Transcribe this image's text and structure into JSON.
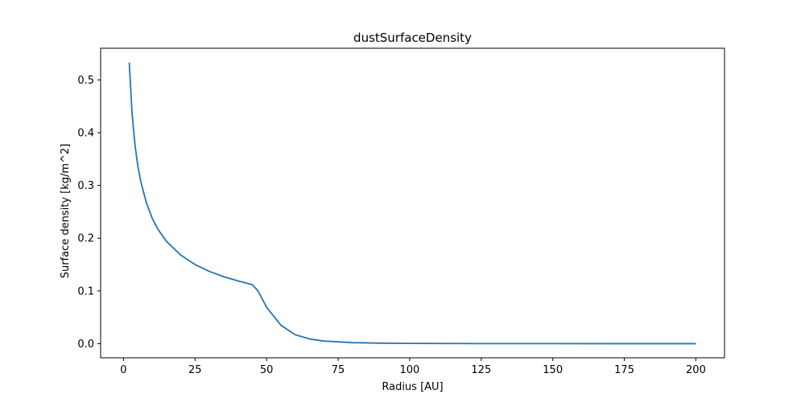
{
  "chart_data": {
    "type": "line",
    "title": "dustSurfaceDensity",
    "xlabel": "Radius [AU]",
    "ylabel": "Surface density [kg/m^2]",
    "xlim": [
      -8,
      210
    ],
    "ylim": [
      -0.0267,
      0.56
    ],
    "xticks": [
      0,
      25,
      50,
      75,
      100,
      125,
      150,
      175,
      200
    ],
    "xtick_labels": [
      "0",
      "25",
      "50",
      "75",
      "100",
      "125",
      "150",
      "175",
      "200"
    ],
    "yticks": [
      0.0,
      0.1,
      0.2,
      0.3,
      0.4,
      0.5
    ],
    "ytick_labels": [
      "0.0",
      "0.1",
      "0.2",
      "0.3",
      "0.4",
      "0.5"
    ],
    "grid": false,
    "series": [
      {
        "color": "#1f77b4",
        "x": [
          2,
          3,
          4,
          5,
          6,
          8,
          10,
          12,
          15,
          20,
          25,
          30,
          35,
          40,
          45,
          47,
          50,
          55,
          60,
          65,
          70,
          80,
          90,
          100,
          125,
          150,
          175,
          200
        ],
        "y": [
          0.533,
          0.435,
          0.377,
          0.337,
          0.308,
          0.267,
          0.238,
          0.217,
          0.194,
          0.168,
          0.15,
          0.137,
          0.127,
          0.119,
          0.112,
          0.1,
          0.069,
          0.035,
          0.017,
          0.009,
          0.005,
          0.002,
          0.001,
          0.0005,
          0.0002,
          0.0001,
          5e-05,
          3e-05
        ]
      }
    ]
  }
}
